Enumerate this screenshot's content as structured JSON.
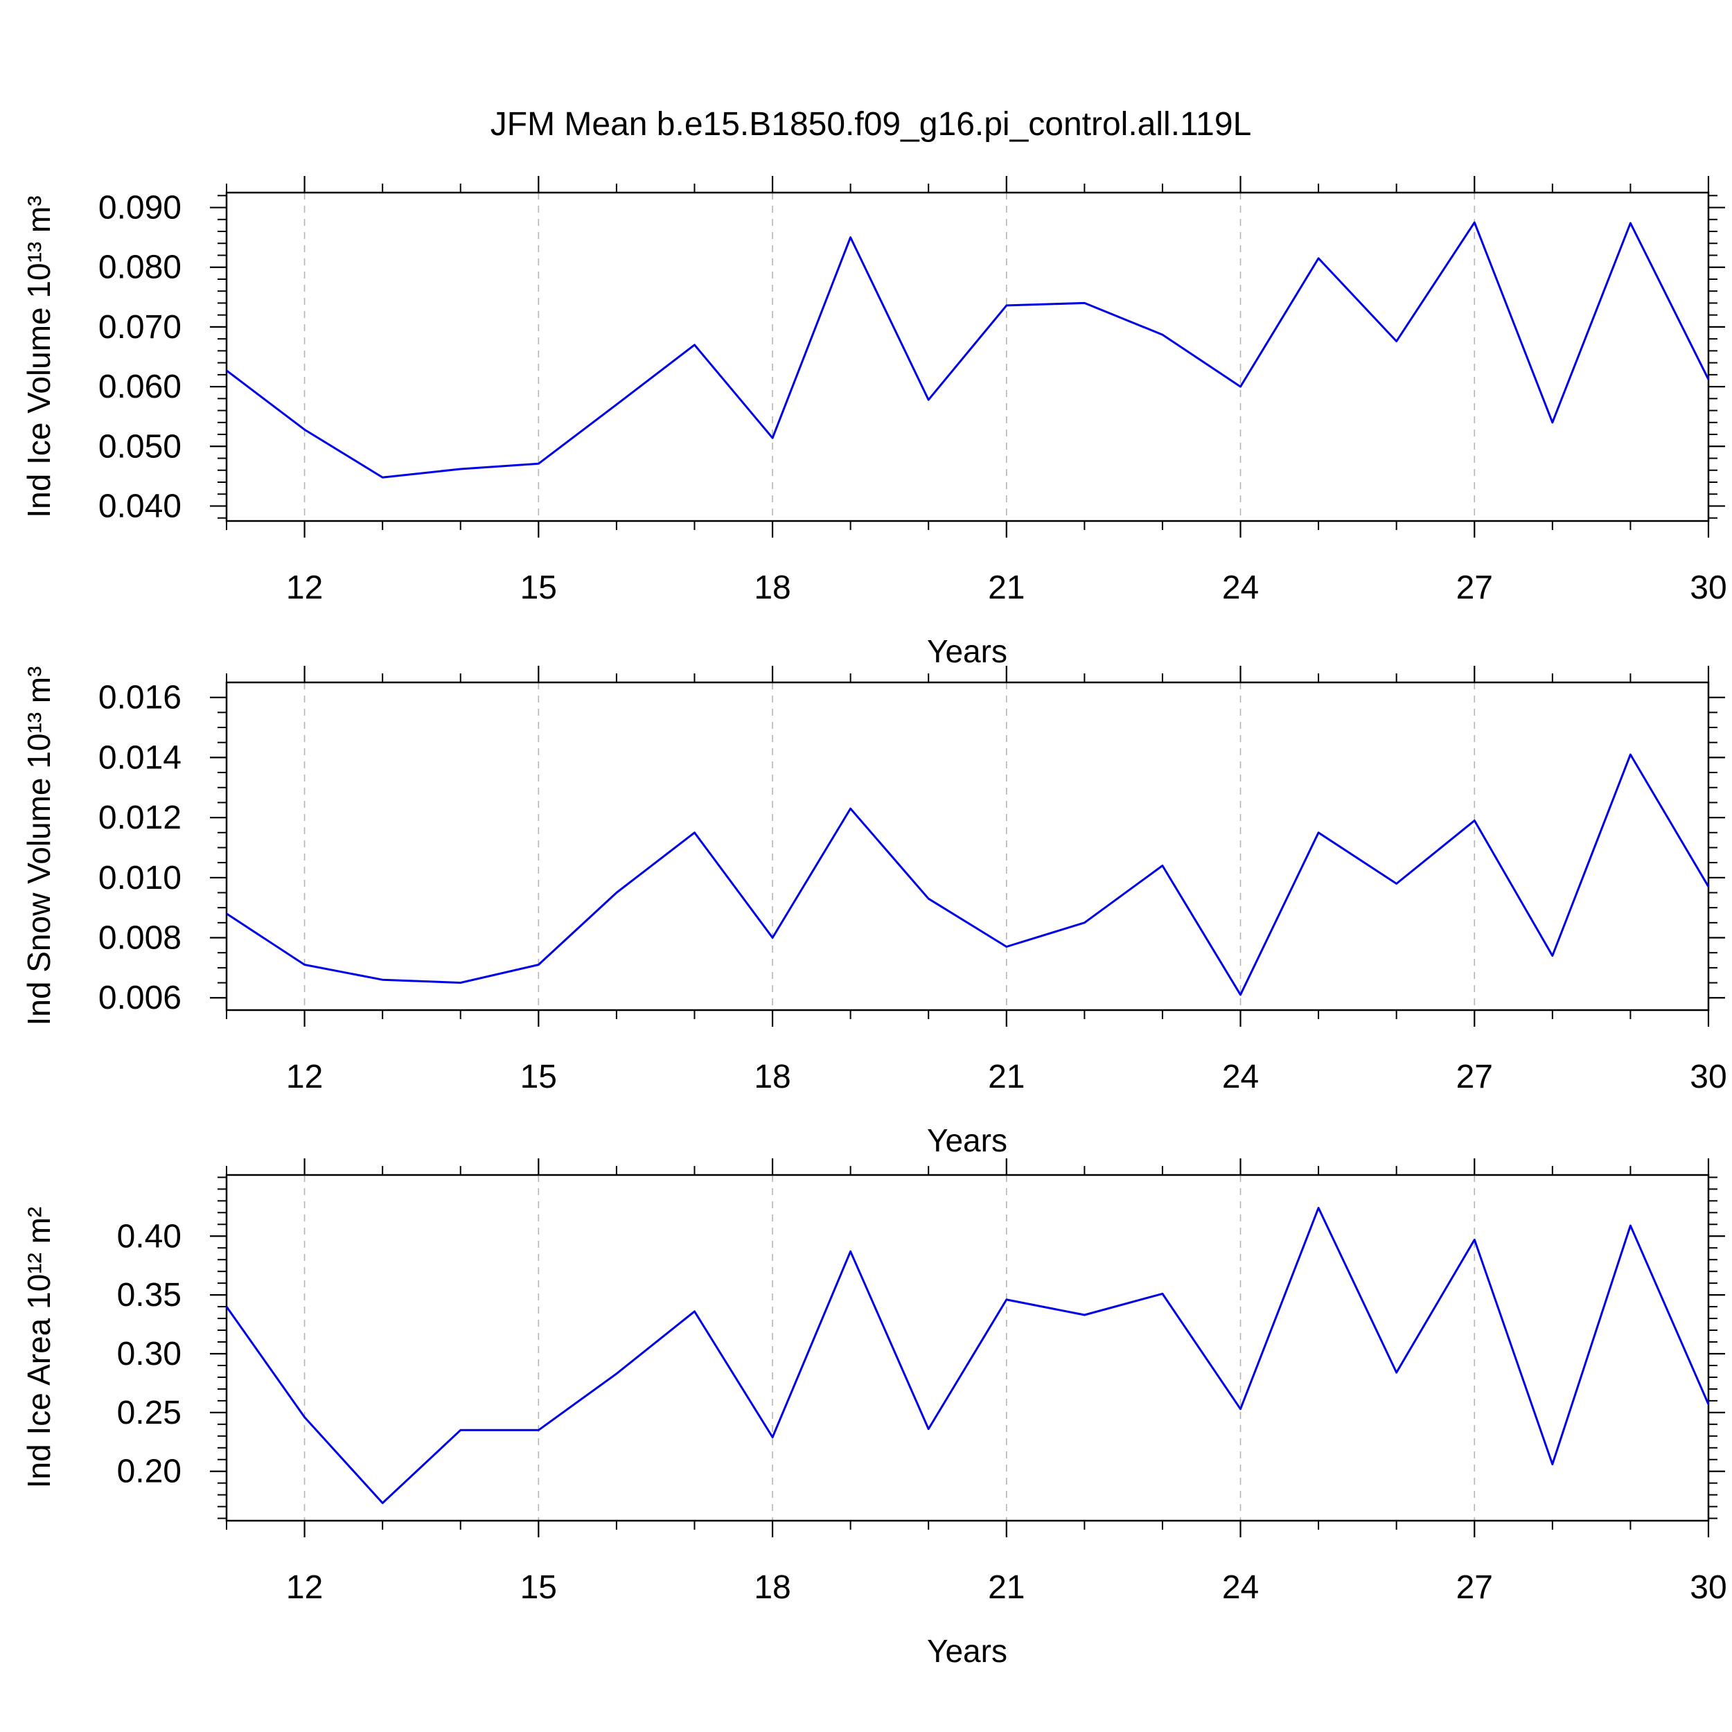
{
  "title": "JFM Mean b.e15.B1850.f09_g16.pi_control.all.119L",
  "colors": {
    "line": "#0000e8",
    "grid": "#b4b4b4",
    "frame": "#000000",
    "text": "#000000"
  },
  "chart_data": [
    {
      "type": "line",
      "name": "ind-ice-volume",
      "ylabel": "Ind Ice Volume 10¹³ m³",
      "xlabel": "Years",
      "x": [
        11,
        12,
        13,
        14,
        15,
        16,
        17,
        18,
        19,
        20,
        21,
        22,
        23,
        24,
        25,
        26,
        27,
        28,
        29,
        30
      ],
      "values": [
        0.0627,
        0.0528,
        0.0448,
        0.0462,
        0.0471,
        0.057,
        0.067,
        0.0514,
        0.085,
        0.0578,
        0.0736,
        0.074,
        0.0687,
        0.06,
        0.0815,
        0.0676,
        0.0875,
        0.054,
        0.0874,
        0.0612
      ],
      "xlim": [
        11,
        30
      ],
      "ylim": [
        0.0375,
        0.0925
      ],
      "xticks": {
        "values": [
          12,
          15,
          18,
          21,
          24,
          27,
          30
        ],
        "labels": [
          "12",
          "15",
          "18",
          "21",
          "24",
          "27",
          "30"
        ]
      },
      "yticks": {
        "values": [
          0.09,
          0.08,
          0.07,
          0.06,
          0.05,
          0.04
        ],
        "labels": [
          "0.090",
          "0.080",
          "0.070",
          "0.060",
          "0.050",
          "0.040"
        ]
      },
      "xtick_minor_step": 1,
      "ytick_minor_step": 0.002,
      "grid": "vertical-dashed-at-major-xticks",
      "legend": null
    },
    {
      "type": "line",
      "name": "ind-snow-volume",
      "ylabel": "Ind Snow Volume 10¹³ m³",
      "xlabel": "Years",
      "x": [
        11,
        12,
        13,
        14,
        15,
        16,
        17,
        18,
        19,
        20,
        21,
        22,
        23,
        24,
        25,
        26,
        27,
        28,
        29,
        30
      ],
      "values": [
        0.0088,
        0.0071,
        0.0066,
        0.0065,
        0.0071,
        0.0095,
        0.0115,
        0.008,
        0.0123,
        0.0093,
        0.0077,
        0.0085,
        0.0104,
        0.0061,
        0.0115,
        0.0098,
        0.0119,
        0.0074,
        0.0141,
        0.0097
      ],
      "xlim": [
        11,
        30
      ],
      "ylim": [
        0.00559,
        0.0165
      ],
      "xticks": {
        "values": [
          12,
          15,
          18,
          21,
          24,
          27,
          30
        ],
        "labels": [
          "12",
          "15",
          "18",
          "21",
          "24",
          "27",
          "30"
        ]
      },
      "yticks": {
        "values": [
          0.016,
          0.014,
          0.012,
          0.01,
          0.008,
          0.006
        ],
        "labels": [
          "0.016",
          "0.014",
          "0.012",
          "0.010",
          "0.008",
          "0.006"
        ]
      },
      "xtick_minor_step": 1,
      "ytick_minor_step": 0.0005,
      "grid": "vertical-dashed-at-major-xticks",
      "legend": null
    },
    {
      "type": "line",
      "name": "ind-ice-area",
      "ylabel": "Ind Ice Area 10¹² m²",
      "xlabel": "Years",
      "x": [
        11,
        12,
        13,
        14,
        15,
        16,
        17,
        18,
        19,
        20,
        21,
        22,
        23,
        24,
        25,
        26,
        27,
        28,
        29,
        30
      ],
      "values": [
        0.34,
        0.246,
        0.173,
        0.235,
        0.235,
        0.283,
        0.336,
        0.229,
        0.387,
        0.236,
        0.346,
        0.333,
        0.351,
        0.253,
        0.424,
        0.284,
        0.397,
        0.206,
        0.409,
        0.257
      ],
      "xlim": [
        11,
        30
      ],
      "ylim": [
        0.158,
        0.452
      ],
      "xticks": {
        "values": [
          12,
          15,
          18,
          21,
          24,
          27,
          30
        ],
        "labels": [
          "12",
          "15",
          "18",
          "21",
          "24",
          "27",
          "30"
        ]
      },
      "yticks": {
        "values": [
          0.4,
          0.35,
          0.3,
          0.25,
          0.2
        ],
        "labels": [
          "0.40",
          "0.35",
          "0.30",
          "0.25",
          "0.20"
        ]
      },
      "xtick_minor_step": 1,
      "ytick_minor_step": 0.01,
      "grid": "vertical-dashed-at-major-xticks",
      "legend": null
    }
  ]
}
